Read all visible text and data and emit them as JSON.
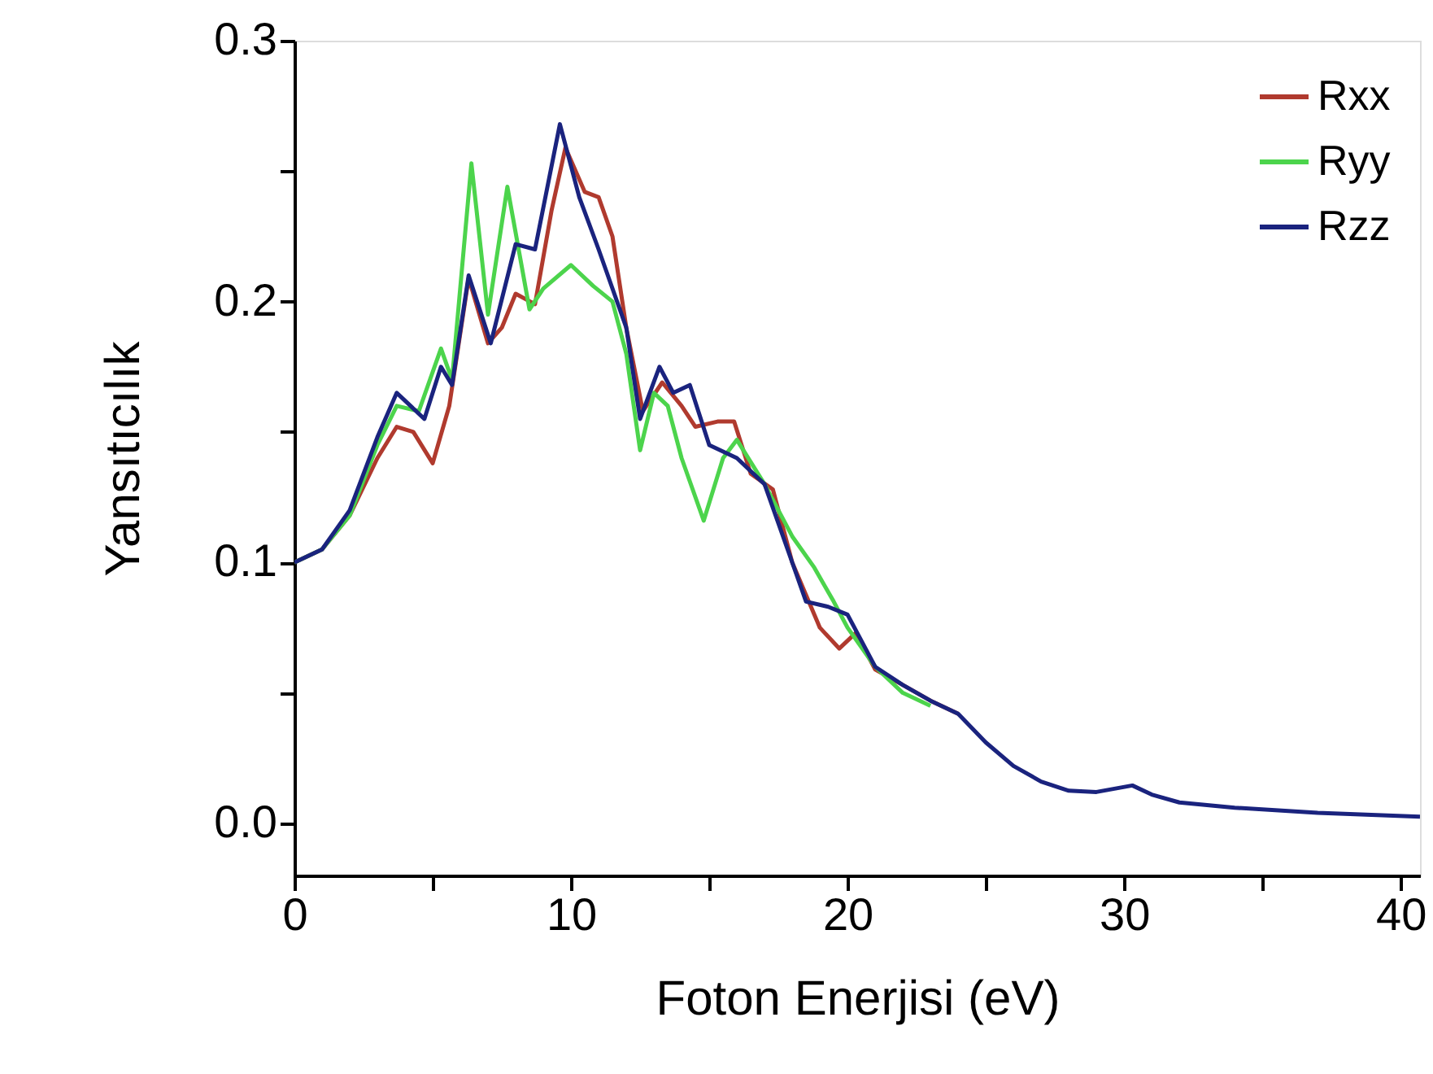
{
  "chart_data": {
    "type": "line",
    "xlabel": "Foton Enerjisi (eV)",
    "ylabel": "Yansıtıcılık",
    "xlim": [
      0,
      40.7
    ],
    "ylim": [
      -0.02,
      0.3
    ],
    "xticks": [
      0,
      {
        "value": 5,
        "label": null
      },
      10,
      {
        "value": 15,
        "label": null
      },
      20,
      {
        "value": 25,
        "label": null
      },
      30,
      {
        "value": 35,
        "label": null
      },
      40
    ],
    "yticks": [
      {
        "value": 0,
        "label": "0.0"
      },
      {
        "value": 0.05,
        "label": null
      },
      0.1,
      {
        "value": 0.15,
        "label": null
      },
      0.2,
      {
        "value": 0.25,
        "label": null
      },
      0.3
    ],
    "grid": false,
    "legend": "top right",
    "marker": "none",
    "line_style": "solid",
    "series": [
      {
        "name": "Rxx",
        "color": "#b03a2e",
        "x": [
          0,
          1,
          2,
          3,
          3.7,
          4.3,
          5,
          5.6,
          6.3,
          7,
          7.5,
          8,
          8.7,
          9.3,
          9.8,
          10.5,
          11,
          11.5,
          12,
          12.6,
          13.3,
          14,
          14.5,
          15.3,
          15.9,
          16.5,
          17.3,
          18,
          19,
          19.7,
          20.3,
          21,
          22,
          23,
          24
        ],
        "values": [
          0.1,
          0.105,
          0.118,
          0.14,
          0.152,
          0.15,
          0.138,
          0.16,
          0.209,
          0.184,
          0.19,
          0.203,
          0.199,
          0.235,
          0.259,
          0.242,
          0.24,
          0.225,
          0.19,
          0.158,
          0.169,
          0.16,
          0.152,
          0.154,
          0.154,
          0.134,
          0.128,
          0.1,
          0.075,
          0.067,
          0.073,
          0.059,
          0.053,
          0.047,
          0.042
        ]
      },
      {
        "name": "Ryy",
        "color": "#4cd44c",
        "x": [
          0,
          1,
          2,
          3,
          3.7,
          4.5,
          5.3,
          5.7,
          6.4,
          7,
          7.7,
          8.5,
          9,
          10,
          10.8,
          11.5,
          12,
          12.5,
          13,
          13.5,
          14,
          14.8,
          15.5,
          16,
          17,
          18,
          18.8,
          19.5,
          20,
          21,
          22,
          23
        ],
        "values": [
          0.1,
          0.105,
          0.118,
          0.145,
          0.16,
          0.158,
          0.182,
          0.17,
          0.253,
          0.195,
          0.244,
          0.197,
          0.205,
          0.214,
          0.206,
          0.2,
          0.18,
          0.143,
          0.165,
          0.16,
          0.14,
          0.116,
          0.14,
          0.147,
          0.13,
          0.11,
          0.098,
          0.085,
          0.075,
          0.06,
          0.05,
          0.045
        ]
      },
      {
        "name": "Rzz",
        "color": "#1a237e",
        "x": [
          0,
          1,
          2,
          3,
          3.7,
          4.7,
          5.3,
          5.7,
          6.3,
          7.1,
          8,
          8.7,
          9.6,
          10.3,
          11,
          12,
          12.5,
          13.2,
          13.7,
          14.3,
          15,
          16,
          17,
          18,
          18.5,
          19.3,
          20,
          20.5,
          21,
          22,
          23,
          24,
          25,
          26,
          27,
          28,
          29,
          30.3,
          31,
          32,
          34,
          37,
          40.7
        ],
        "values": [
          0.1,
          0.105,
          0.12,
          0.148,
          0.165,
          0.155,
          0.175,
          0.168,
          0.21,
          0.184,
          0.222,
          0.22,
          0.268,
          0.24,
          0.22,
          0.19,
          0.155,
          0.175,
          0.165,
          0.168,
          0.145,
          0.14,
          0.13,
          0.1,
          0.085,
          0.083,
          0.08,
          0.07,
          0.06,
          0.053,
          0.047,
          0.042,
          0.031,
          0.022,
          0.016,
          0.0125,
          0.012,
          0.0145,
          0.011,
          0.008,
          0.006,
          0.004,
          0.0025
        ]
      }
    ]
  }
}
